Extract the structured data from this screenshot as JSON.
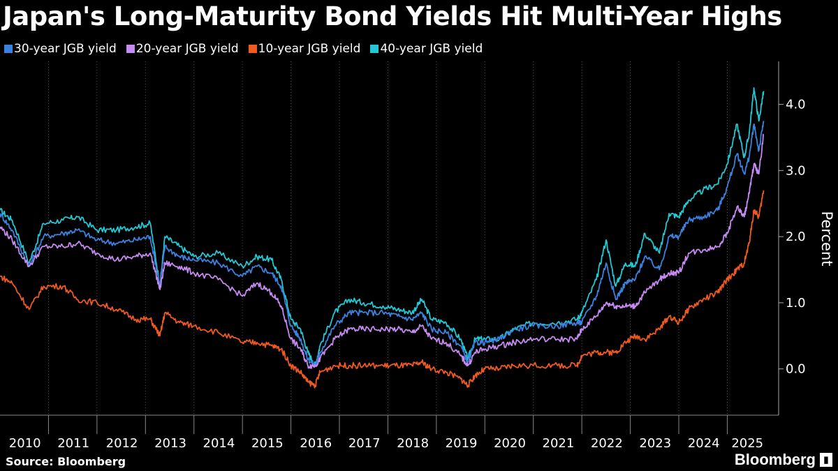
{
  "title": "Japan's Long-Maturity Bond Yields Hit Multi-Year Highs",
  "source": "Source: Bloomberg",
  "brand": "Bloomberg",
  "colors": {
    "background": "#000000",
    "y30": "#3b82e0",
    "y20": "#c68af2",
    "y10": "#f05a1e",
    "y40": "#22c8d4"
  },
  "legend": [
    {
      "label": "30-year JGB yield",
      "color": "#3b82e0"
    },
    {
      "label": "20-year JGB yield",
      "color": "#c68af2"
    },
    {
      "label": "10-year JGB yield",
      "color": "#f05a1e"
    },
    {
      "label": "40-year JGB yield",
      "color": "#22c8d4"
    }
  ],
  "chart_data": {
    "type": "line",
    "ylabel": "Percent",
    "ylim": [
      -0.7,
      4.65
    ],
    "xlim": [
      2010.0,
      2025.8
    ],
    "y_ticks": [
      0.0,
      1.0,
      2.0,
      3.0,
      4.0
    ],
    "y_tick_labels": [
      "0.0",
      "1.0",
      "2.0",
      "3.0",
      "4.0"
    ],
    "x_ticks": [
      2010,
      2011,
      2012,
      2013,
      2014,
      2015,
      2016,
      2017,
      2018,
      2019,
      2020,
      2021,
      2022,
      2023,
      2024,
      2025
    ],
    "x_tick_labels": [
      "2010",
      "2011",
      "2012",
      "2013",
      "2014",
      "2015",
      "2016",
      "2017",
      "2018",
      "2019",
      "2020",
      "2021",
      "2022",
      "2023",
      "2024",
      "2025"
    ],
    "grid": "vertical dotted",
    "series": [
      {
        "name": "40-year JGB yield",
        "color": "#22c8d4",
        "x": [
          2010.0,
          2010.25,
          2010.6,
          2010.9,
          2011.3,
          2011.6,
          2012.0,
          2012.4,
          2012.8,
          2013.1,
          2013.3,
          2013.4,
          2013.7,
          2014.0,
          2014.5,
          2015.0,
          2015.3,
          2015.6,
          2015.8,
          2016.0,
          2016.2,
          2016.35,
          2016.5,
          2016.6,
          2016.9,
          2017.2,
          2017.5,
          2017.9,
          2018.2,
          2018.5,
          2018.7,
          2018.9,
          2019.2,
          2019.5,
          2019.65,
          2019.8,
          2020.0,
          2020.3,
          2020.6,
          2021.0,
          2021.5,
          2021.9,
          2022.0,
          2022.3,
          2022.5,
          2022.7,
          2022.9,
          2023.1,
          2023.3,
          2023.6,
          2023.8,
          2024.0,
          2024.2,
          2024.5,
          2024.8,
          2025.0,
          2025.2,
          2025.35,
          2025.45,
          2025.55,
          2025.65,
          2025.75
        ],
        "y": [
          2.4,
          2.25,
          1.6,
          2.2,
          2.25,
          2.3,
          2.1,
          2.1,
          2.15,
          2.2,
          1.25,
          2.0,
          1.85,
          1.7,
          1.75,
          1.55,
          1.7,
          1.65,
          1.35,
          0.75,
          0.6,
          0.25,
          0.05,
          0.35,
          0.85,
          1.05,
          1.0,
          0.95,
          0.9,
          0.85,
          1.05,
          0.75,
          0.7,
          0.45,
          0.15,
          0.45,
          0.45,
          0.45,
          0.6,
          0.7,
          0.7,
          0.75,
          0.85,
          1.35,
          1.95,
          1.25,
          1.6,
          1.55,
          2.05,
          1.75,
          2.35,
          2.3,
          2.55,
          2.7,
          2.8,
          3.1,
          3.7,
          3.2,
          3.55,
          4.25,
          3.75,
          4.2
        ]
      },
      {
        "name": "30-year JGB yield",
        "color": "#3b82e0",
        "x": [
          2010.0,
          2010.25,
          2010.6,
          2010.9,
          2011.3,
          2011.6,
          2012.0,
          2012.4,
          2012.8,
          2013.1,
          2013.3,
          2013.4,
          2013.7,
          2014.0,
          2014.5,
          2015.0,
          2015.3,
          2015.6,
          2015.8,
          2016.0,
          2016.2,
          2016.35,
          2016.5,
          2016.6,
          2016.9,
          2017.2,
          2017.5,
          2017.9,
          2018.2,
          2018.5,
          2018.7,
          2018.9,
          2019.2,
          2019.5,
          2019.65,
          2019.8,
          2020.0,
          2020.3,
          2020.6,
          2021.0,
          2021.5,
          2021.9,
          2022.0,
          2022.3,
          2022.5,
          2022.7,
          2022.9,
          2023.1,
          2023.3,
          2023.6,
          2023.8,
          2024.0,
          2024.2,
          2024.5,
          2024.8,
          2025.0,
          2025.2,
          2025.35,
          2025.45,
          2025.55,
          2025.65,
          2025.75
        ],
        "y": [
          2.35,
          2.1,
          1.55,
          2.0,
          2.05,
          2.1,
          1.95,
          1.9,
          1.95,
          2.0,
          1.25,
          1.85,
          1.7,
          1.65,
          1.6,
          1.4,
          1.55,
          1.45,
          1.25,
          0.65,
          0.45,
          0.15,
          0.05,
          0.25,
          0.65,
          0.85,
          0.85,
          0.85,
          0.8,
          0.75,
          0.85,
          0.6,
          0.55,
          0.35,
          0.1,
          0.4,
          0.4,
          0.45,
          0.6,
          0.65,
          0.65,
          0.7,
          0.7,
          1.1,
          1.6,
          1.05,
          1.3,
          1.35,
          1.7,
          1.5,
          2.0,
          2.0,
          2.25,
          2.3,
          2.4,
          2.75,
          3.25,
          2.95,
          3.2,
          3.7,
          3.3,
          3.75
        ]
      },
      {
        "name": "20-year JGB yield",
        "color": "#c68af2",
        "x": [
          2010.0,
          2010.25,
          2010.6,
          2010.9,
          2011.3,
          2011.6,
          2012.0,
          2012.4,
          2012.8,
          2013.1,
          2013.3,
          2013.4,
          2013.7,
          2014.0,
          2014.5,
          2015.0,
          2015.3,
          2015.6,
          2015.8,
          2016.0,
          2016.2,
          2016.35,
          2016.5,
          2016.6,
          2016.9,
          2017.2,
          2017.5,
          2017.9,
          2018.2,
          2018.5,
          2018.7,
          2018.9,
          2019.2,
          2019.5,
          2019.65,
          2019.8,
          2020.0,
          2020.3,
          2020.6,
          2021.0,
          2021.5,
          2021.9,
          2022.0,
          2022.3,
          2022.5,
          2022.7,
          2022.9,
          2023.1,
          2023.3,
          2023.6,
          2023.8,
          2024.0,
          2024.2,
          2024.5,
          2024.8,
          2025.0,
          2025.2,
          2025.35,
          2025.45,
          2025.55,
          2025.65,
          2025.75
        ],
        "y": [
          2.15,
          1.95,
          1.55,
          1.85,
          1.85,
          1.9,
          1.75,
          1.65,
          1.7,
          1.75,
          1.2,
          1.6,
          1.55,
          1.45,
          1.35,
          1.1,
          1.3,
          1.15,
          0.95,
          0.45,
          0.3,
          0.05,
          0.05,
          0.15,
          0.45,
          0.6,
          0.6,
          0.6,
          0.6,
          0.55,
          0.65,
          0.45,
          0.4,
          0.2,
          0.05,
          0.25,
          0.3,
          0.35,
          0.4,
          0.45,
          0.45,
          0.45,
          0.6,
          0.8,
          1.0,
          0.95,
          0.95,
          0.95,
          1.15,
          1.35,
          1.45,
          1.45,
          1.75,
          1.8,
          1.85,
          2.05,
          2.45,
          2.3,
          2.65,
          3.1,
          2.95,
          3.55
        ]
      },
      {
        "name": "10-year JGB yield",
        "color": "#f05a1e",
        "x": [
          2010.0,
          2010.25,
          2010.6,
          2010.9,
          2011.3,
          2011.6,
          2012.0,
          2012.4,
          2012.8,
          2013.1,
          2013.3,
          2013.4,
          2013.7,
          2014.0,
          2014.5,
          2015.0,
          2015.3,
          2015.6,
          2015.8,
          2016.0,
          2016.2,
          2016.35,
          2016.5,
          2016.6,
          2016.9,
          2017.2,
          2017.5,
          2017.9,
          2018.2,
          2018.5,
          2018.7,
          2018.9,
          2019.2,
          2019.5,
          2019.65,
          2019.8,
          2020.0,
          2020.3,
          2020.6,
          2021.0,
          2021.5,
          2021.9,
          2022.0,
          2022.3,
          2022.5,
          2022.7,
          2022.9,
          2023.1,
          2023.3,
          2023.6,
          2023.8,
          2024.0,
          2024.2,
          2024.5,
          2024.8,
          2025.0,
          2025.2,
          2025.35,
          2025.45,
          2025.55,
          2025.65,
          2025.75
        ],
        "y": [
          1.4,
          1.3,
          0.9,
          1.25,
          1.25,
          1.05,
          1.0,
          0.9,
          0.75,
          0.75,
          0.5,
          0.85,
          0.7,
          0.65,
          0.55,
          0.4,
          0.4,
          0.35,
          0.3,
          0.05,
          -0.05,
          -0.2,
          -0.25,
          -0.05,
          0.05,
          0.05,
          0.05,
          0.05,
          0.05,
          0.05,
          0.1,
          0.0,
          -0.05,
          -0.15,
          -0.25,
          -0.1,
          0.0,
          0.0,
          0.05,
          0.05,
          0.05,
          0.05,
          0.2,
          0.25,
          0.25,
          0.25,
          0.4,
          0.5,
          0.45,
          0.6,
          0.8,
          0.7,
          0.9,
          1.05,
          1.15,
          1.35,
          1.5,
          1.6,
          1.9,
          2.4,
          2.3,
          2.7
        ]
      }
    ]
  }
}
